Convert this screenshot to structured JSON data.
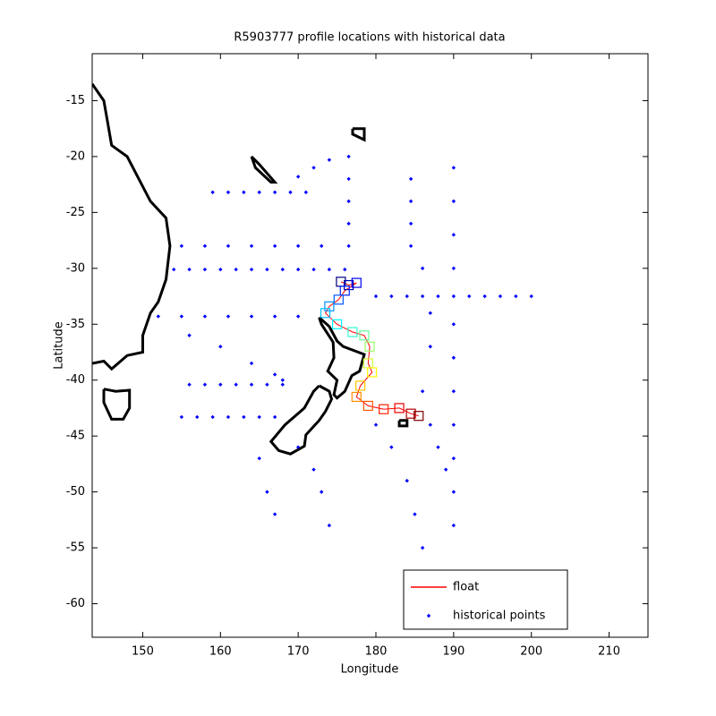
{
  "chart_data": {
    "type": "scatter",
    "title": "R5903777 profile locations with historical data",
    "x_label": "Longitude",
    "y_label": "Latitude",
    "xlim": [
      143.5,
      215
    ],
    "ylim": [
      -63,
      -10.8
    ],
    "xticks": [
      150,
      160,
      170,
      180,
      190,
      200,
      210
    ],
    "yticks": [
      -15,
      -20,
      -25,
      -30,
      -35,
      -40,
      -45,
      -50,
      -55,
      -60
    ],
    "grid": false,
    "legend": "southeast",
    "float_colormap": "jet",
    "series": [
      {
        "name": "float",
        "color": "#ff0000",
        "x": [
          175.5,
          176.5,
          177.5,
          176,
          175.2,
          174,
          173.5,
          175,
          177,
          178.5,
          179.2,
          179,
          179.5,
          178,
          177.5,
          179,
          181,
          183,
          184.5,
          185.5
        ],
        "values": [
          -31.2,
          -31.5,
          -31.3,
          -32,
          -32.8,
          -33.4,
          -34,
          -35,
          -35.7,
          -36,
          -37,
          -38.5,
          -39.3,
          -40.5,
          -41.5,
          -42.3,
          -42.6,
          -42.5,
          -43,
          -43.2
        ]
      },
      {
        "name": "historical points",
        "color": "#0000ff",
        "x": [
          154,
          156,
          158,
          160,
          162,
          164,
          166,
          168,
          170,
          172,
          174,
          176,
          180,
          182,
          184,
          186,
          188,
          190,
          192,
          194,
          196,
          198,
          200,
          190,
          190,
          190,
          190,
          190,
          190,
          190,
          190,
          190,
          190,
          190,
          176.5,
          176.5,
          176.5,
          176.5,
          176.5,
          152,
          155,
          158,
          161,
          164,
          167,
          170,
          155,
          157,
          159,
          161,
          163,
          165,
          167,
          156,
          158,
          160,
          162,
          164,
          166,
          168,
          159,
          161,
          163,
          165,
          167,
          169,
          171,
          155,
          158,
          161,
          164,
          167,
          170,
          173,
          170,
          172,
          174,
          156,
          160,
          164,
          167,
          168,
          180,
          182,
          184,
          185,
          186,
          187,
          188,
          189,
          170,
          172,
          173,
          174,
          165,
          166,
          167,
          184.5,
          184.5,
          184.5,
          184.5,
          186,
          187,
          187,
          186
        ],
        "values": [
          -30.1,
          -30.1,
          -30.1,
          -30.1,
          -30.1,
          -30.1,
          -30.1,
          -30.1,
          -30.1,
          -30.1,
          -30.1,
          -30.1,
          -32.5,
          -32.5,
          -32.5,
          -32.5,
          -32.5,
          -32.5,
          -32.5,
          -32.5,
          -32.5,
          -32.5,
          -32.5,
          -21,
          -24,
          -27,
          -30,
          -35,
          -38,
          -41,
          -44,
          -47,
          -50,
          -53,
          -20,
          -22,
          -24,
          -26,
          -28,
          -34.3,
          -34.3,
          -34.3,
          -34.3,
          -34.3,
          -34.3,
          -34.3,
          -43.3,
          -43.3,
          -43.3,
          -43.3,
          -43.3,
          -43.3,
          -43.3,
          -40.4,
          -40.4,
          -40.4,
          -40.4,
          -40.4,
          -40.4,
          -40.4,
          -23.2,
          -23.2,
          -23.2,
          -23.2,
          -23.2,
          -23.2,
          -23.2,
          -28,
          -28,
          -28,
          -28,
          -28,
          -28,
          -28,
          -21.8,
          -21,
          -20.3,
          -36,
          -37,
          -38.5,
          -39.5,
          -40,
          -44,
          -46,
          -49,
          -52,
          -55,
          -44,
          -46,
          -48,
          -46,
          -48,
          -50,
          -53,
          -47,
          -50,
          -52,
          -22,
          -24,
          -26,
          -28,
          -30,
          -34,
          -37,
          -41
        ]
      }
    ],
    "coastline": {
      "color": "#000000",
      "pieces": [
        {
          "x": [
            143.5,
            145,
            145.5,
            146,
            148,
            149.5,
            151,
            153,
            153.5,
            153,
            152,
            151,
            150,
            150,
            148,
            146,
            145,
            143.5
          ],
          "y": [
            -13.5,
            -15,
            -17,
            -19,
            -20,
            -22,
            -24,
            -25.5,
            -28,
            -31,
            -33,
            -34,
            -36,
            -37.5,
            -37.8,
            -39,
            -38.3,
            -38.5
          ]
        },
        {
          "x": [
            145,
            146.5,
            148.3,
            148.3,
            147.5,
            146,
            145,
            145
          ],
          "y": [
            -40.8,
            -41,
            -40.9,
            -42.5,
            -43.5,
            -43.5,
            -42,
            -40.8
          ]
        },
        {
          "x": [
            172.7,
            174,
            175,
            175.8,
            178.5,
            177.9,
            176.9,
            176,
            175,
            174.6,
            175,
            173.8,
            174.6,
            174.5,
            173,
            172.7
          ],
          "y": [
            -34.4,
            -35.2,
            -36.5,
            -37,
            -37.7,
            -39.2,
            -39.6,
            -41,
            -41.6,
            -41.3,
            -40,
            -39.2,
            -38,
            -36.6,
            -35,
            -34.4
          ]
        },
        {
          "x": [
            172.7,
            174,
            174.3,
            173.5,
            172.7,
            171,
            170.8,
            169,
            167.5,
            166.5,
            168.3,
            170.8,
            172,
            172.7
          ],
          "y": [
            -40.5,
            -41,
            -41.7,
            -42.8,
            -43.6,
            -44.9,
            -45.9,
            -46.6,
            -46.3,
            -45.5,
            -44,
            -42.5,
            -41,
            -40.5
          ]
        },
        {
          "x": [
            164,
            165,
            167,
            166.5,
            164.5,
            164
          ],
          "y": [
            -20,
            -20.7,
            -22.3,
            -22.3,
            -21,
            -20
          ]
        },
        {
          "x": [
            177,
            178.5,
            178.5,
            177,
            177
          ],
          "y": [
            -17.5,
            -17.5,
            -18.5,
            -18,
            -17.5
          ]
        },
        {
          "x": [
            183,
            184,
            184,
            183,
            183
          ],
          "y": [
            -43.6,
            -43.6,
            -44.1,
            -44.1,
            -43.6
          ]
        }
      ]
    }
  }
}
